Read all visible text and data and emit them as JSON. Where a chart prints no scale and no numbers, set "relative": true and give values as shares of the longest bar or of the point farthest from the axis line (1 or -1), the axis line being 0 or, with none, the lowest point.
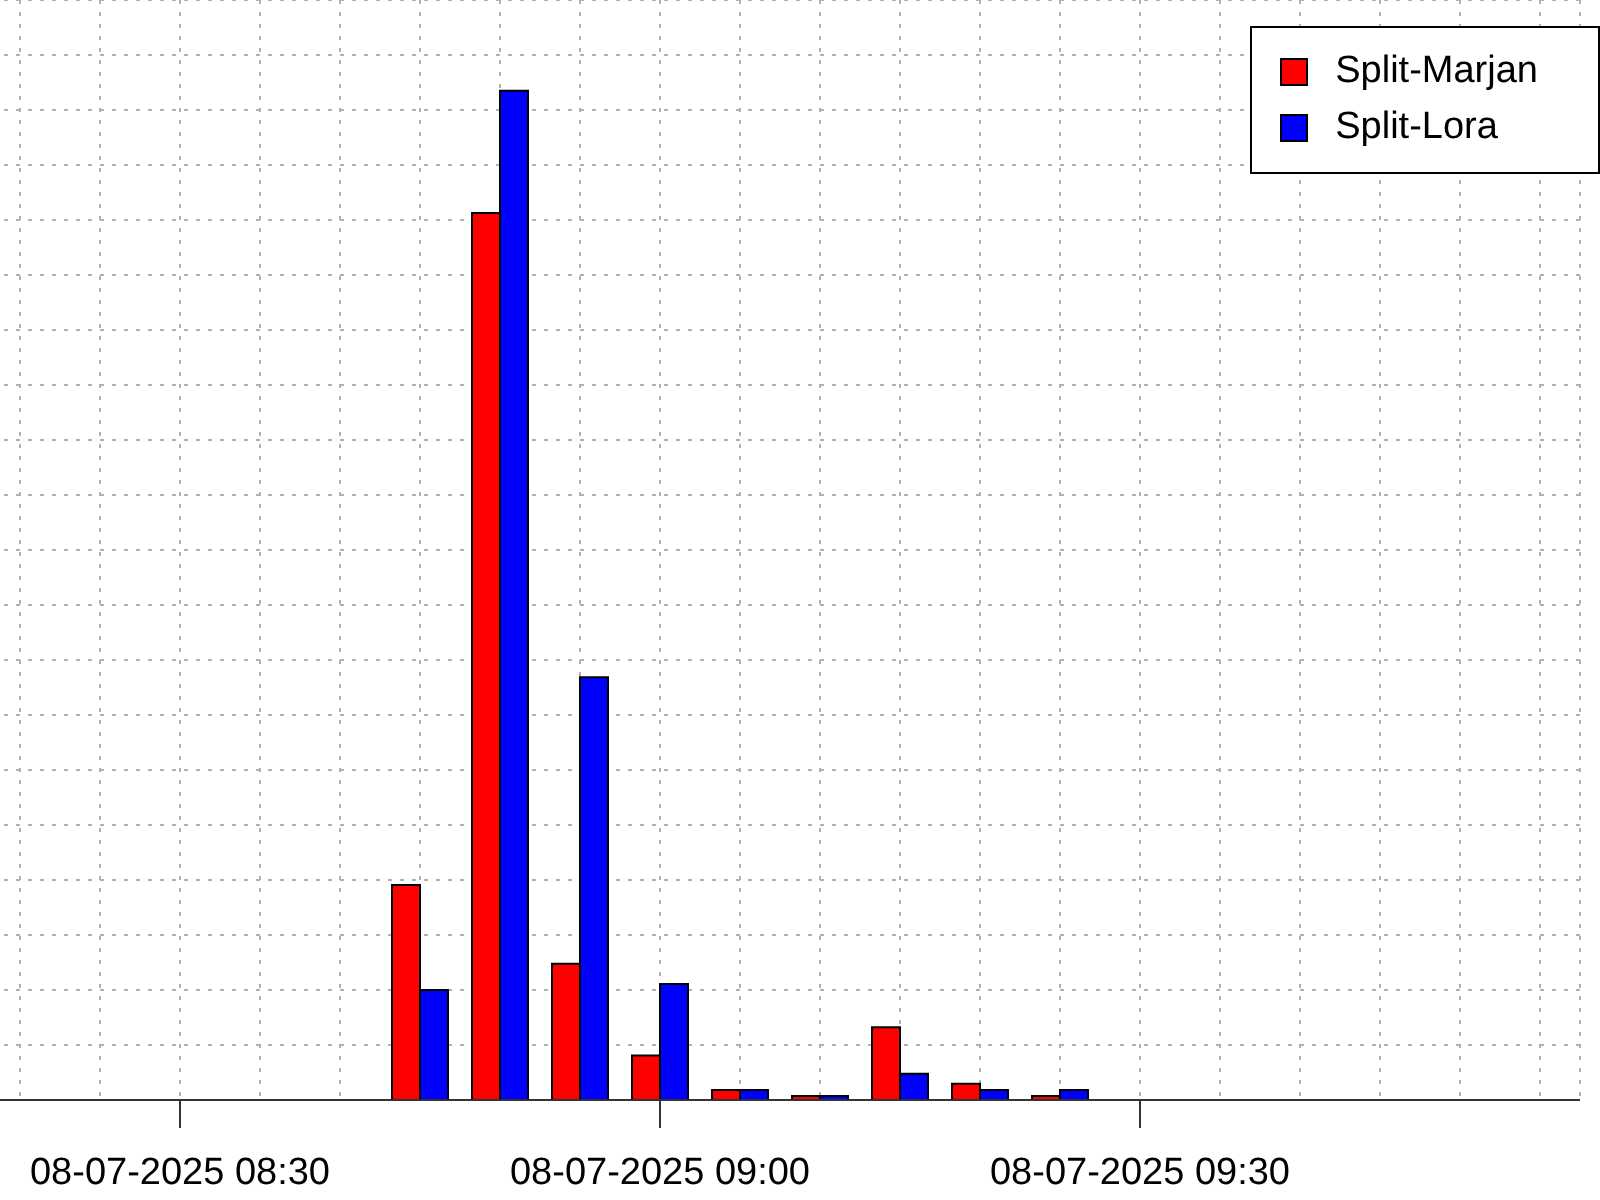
{
  "chart_data": {
    "type": "bar",
    "relative": true,
    "categories": [
      null,
      null,
      "08-07-2025 08:30",
      null,
      null,
      null,
      null,
      null,
      "08-07-2025 09:00",
      null,
      null,
      null,
      null,
      null,
      "08-07-2025 09:30",
      null,
      null,
      null,
      null,
      null
    ],
    "series": [
      {
        "name": "Split-Marjan",
        "color": "#ff0000",
        "values": [
          0,
          0,
          0,
          0,
          0,
          0.213,
          0.879,
          0.135,
          0.044,
          0.01,
          0.004,
          0.072,
          0.016,
          0.004,
          0,
          0,
          0,
          0,
          0,
          0
        ]
      },
      {
        "name": "Split-Lora",
        "color": "#0000ff",
        "values": [
          0,
          0,
          0,
          0,
          0,
          0.109,
          1,
          0.419,
          0.115,
          0.01,
          0.004,
          0.026,
          0.01,
          0.01,
          0,
          0,
          0,
          0,
          0,
          0
        ]
      }
    ],
    "grid": true,
    "legend": "top right"
  }
}
